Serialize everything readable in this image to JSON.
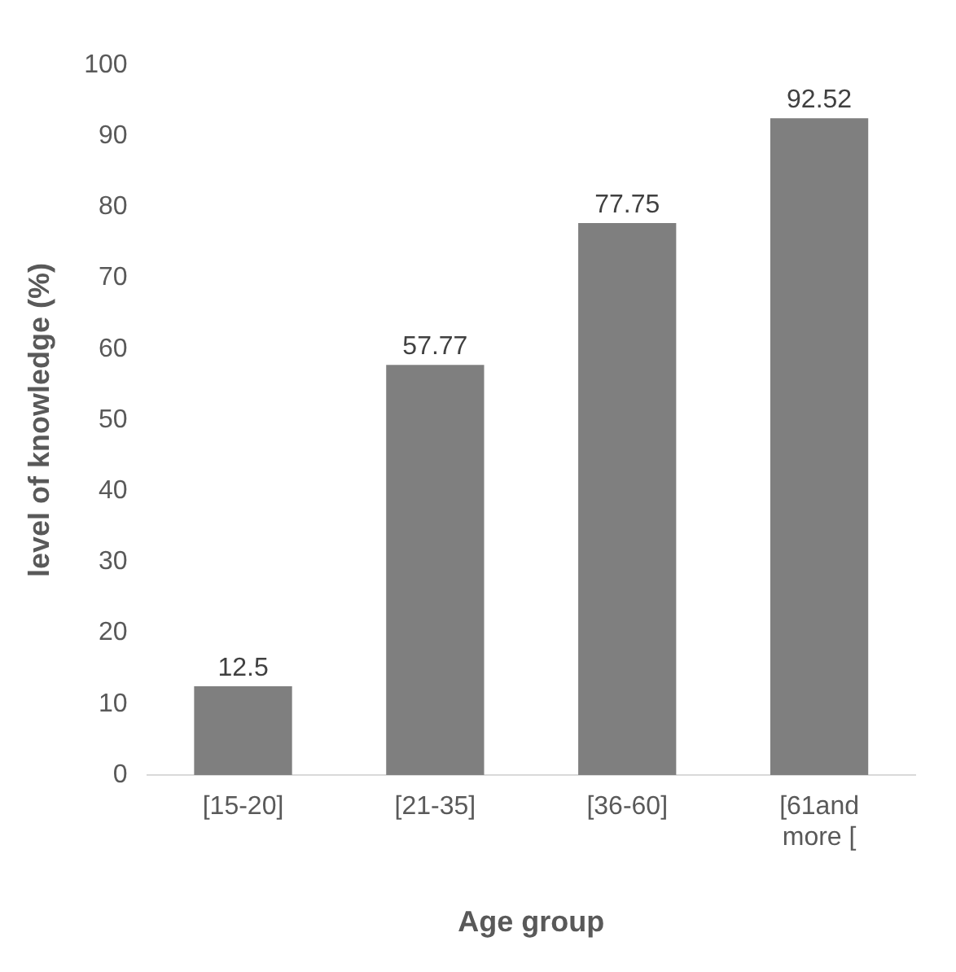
{
  "chart_data": {
    "type": "bar",
    "xlabel": "Age group",
    "ylabel": "level of knowledge (%)",
    "categories": [
      "[15-20]",
      "[21-35]",
      "[36-60]",
      "[61and more ["
    ],
    "values": [
      12.5,
      57.77,
      77.75,
      92.52
    ],
    "color": "#7f7f7f",
    "ylim": [
      0,
      100
    ],
    "yticks": [
      0,
      10,
      20,
      30,
      40,
      50,
      60,
      70,
      80,
      90,
      100
    ],
    "data_labels": true,
    "grid": false,
    "legend": false
  }
}
